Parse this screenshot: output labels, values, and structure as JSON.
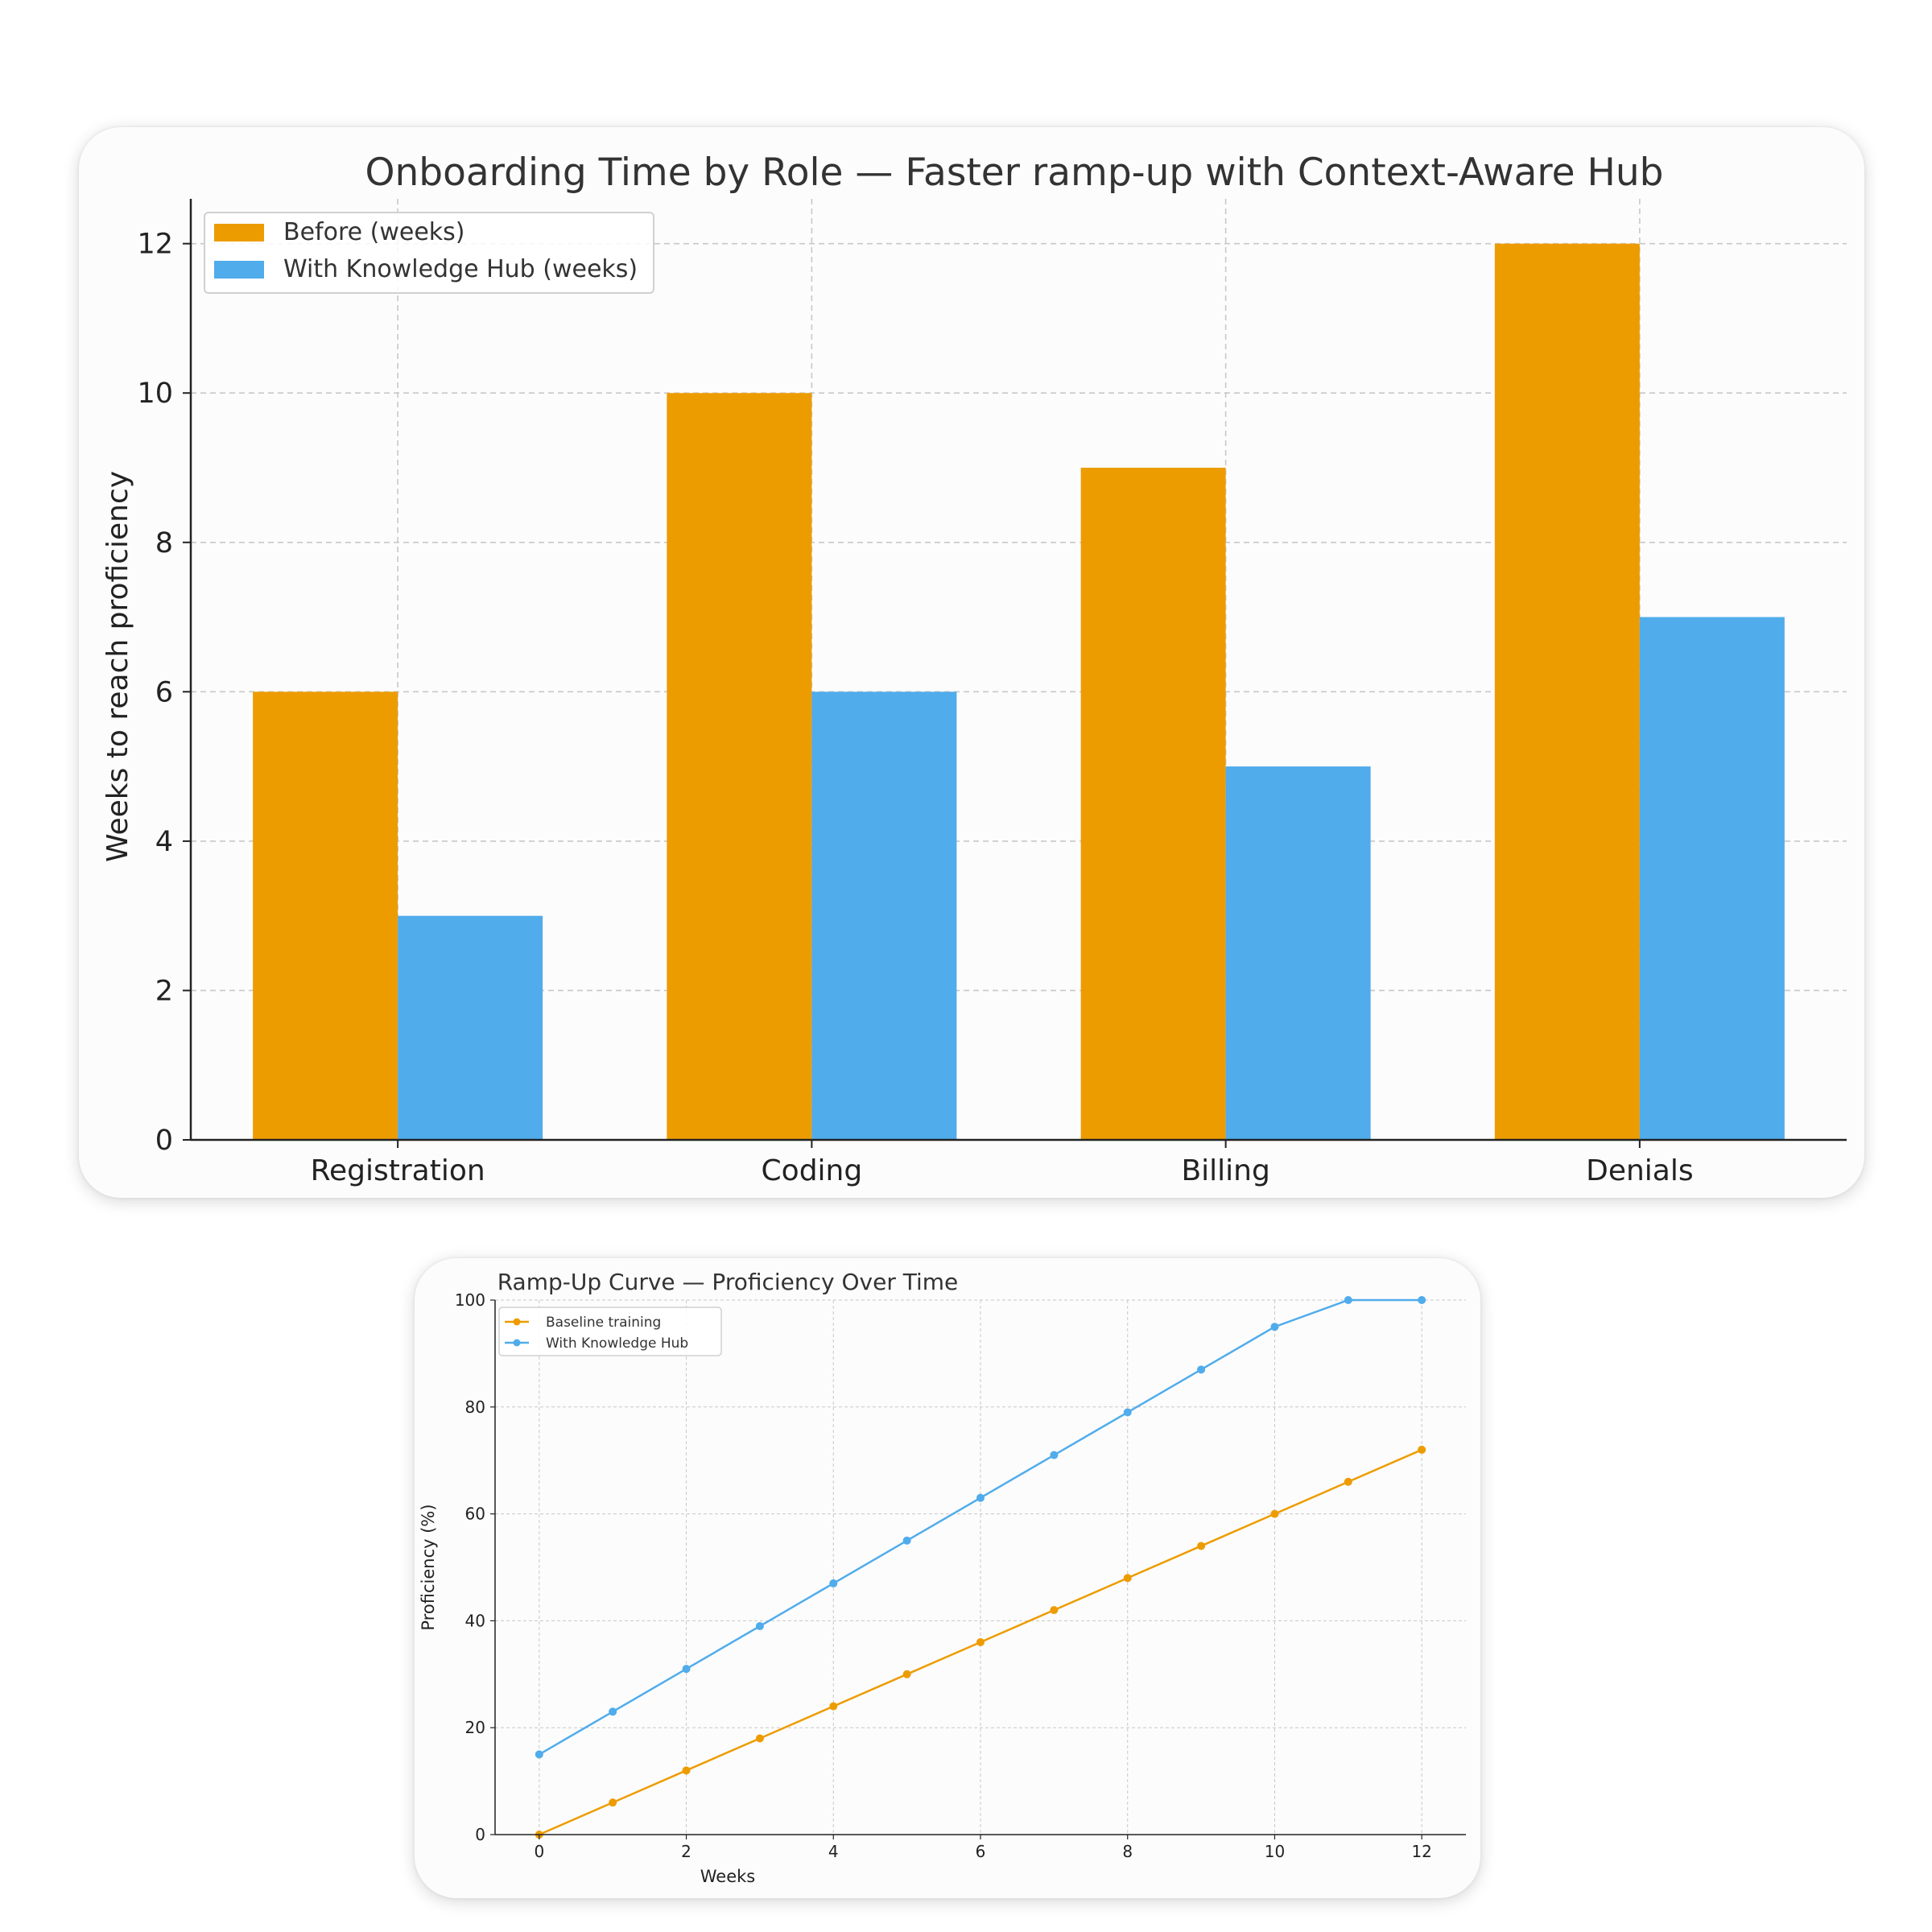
{
  "colors": {
    "before": "#ED9C00",
    "after": "#50ACEB",
    "axis": "#222222",
    "grid": "#C8C8C8",
    "text": "#333333"
  },
  "chart_data": [
    {
      "type": "bar",
      "title": "Onboarding Time by Role — Faster ramp-up with Context-Aware Hub",
      "xlabel": "",
      "ylabel": "Weeks to reach proficiency",
      "categories": [
        "Registration",
        "Coding",
        "Billing",
        "Denials"
      ],
      "series": [
        {
          "name": "Before (weeks)",
          "values": [
            6,
            10,
            9,
            12
          ]
        },
        {
          "name": "With Knowledge Hub (weeks)",
          "values": [
            3,
            6,
            5,
            7
          ]
        }
      ],
      "ylim": [
        0,
        12.6
      ],
      "yticks": [
        0,
        2,
        4,
        6,
        8,
        10,
        12
      ],
      "grid": true,
      "legend": "top-left"
    },
    {
      "type": "line",
      "title": "Ramp-Up Curve — Proficiency Over Time",
      "xlabel": "Weeks",
      "ylabel": "Proficiency (%)",
      "x": [
        0,
        1,
        2,
        3,
        4,
        5,
        6,
        7,
        8,
        9,
        10,
        11,
        12
      ],
      "series": [
        {
          "name": "Baseline training",
          "values": [
            0,
            6,
            12,
            18,
            24,
            30,
            36,
            42,
            48,
            54,
            60,
            66,
            72
          ]
        },
        {
          "name": "With Knowledge Hub",
          "values": [
            15,
            23,
            31,
            39,
            47,
            55,
            63,
            71,
            79,
            87,
            95,
            100,
            100
          ]
        }
      ],
      "xlim": [
        -0.6,
        12.6
      ],
      "ylim": [
        0,
        100
      ],
      "xticks": [
        0,
        2,
        4,
        6,
        8,
        10,
        12
      ],
      "yticks": [
        0,
        20,
        40,
        60,
        80,
        100
      ],
      "grid": true,
      "legend": "top-left"
    }
  ]
}
